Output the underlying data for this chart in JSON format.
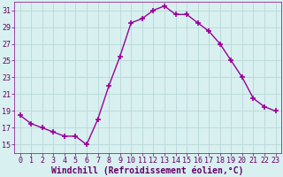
{
  "x": [
    0,
    1,
    2,
    3,
    4,
    5,
    6,
    7,
    8,
    9,
    10,
    11,
    12,
    13,
    14,
    15,
    16,
    17,
    18,
    19,
    20,
    21,
    22,
    23
  ],
  "y": [
    18.5,
    17.5,
    17.0,
    16.5,
    16.0,
    16.0,
    15.0,
    18.0,
    22.0,
    25.5,
    29.5,
    30.0,
    31.0,
    31.5,
    30.5,
    30.5,
    29.5,
    28.5,
    27.0,
    25.0,
    23.0,
    20.5,
    19.5,
    19.0
  ],
  "line_color": "#990099",
  "marker": "+",
  "marker_size": 5,
  "marker_lw": 1.2,
  "bg_color": "#d8f0f0",
  "grid_color": "#b8d8d8",
  "xlabel": "Windchill (Refroidissement éolien,°C)",
  "xlabel_fontsize": 7,
  "tick_fontsize": 6,
  "ylim": [
    14,
    32
  ],
  "yticks": [
    15,
    17,
    19,
    21,
    23,
    25,
    27,
    29,
    31
  ],
  "xticks": [
    0,
    1,
    2,
    3,
    4,
    5,
    6,
    7,
    8,
    9,
    10,
    11,
    12,
    13,
    14,
    15,
    16,
    17,
    18,
    19,
    20,
    21,
    22,
    23
  ],
  "label_color": "#660066",
  "spine_color": "#880088",
  "line_width": 1.0
}
